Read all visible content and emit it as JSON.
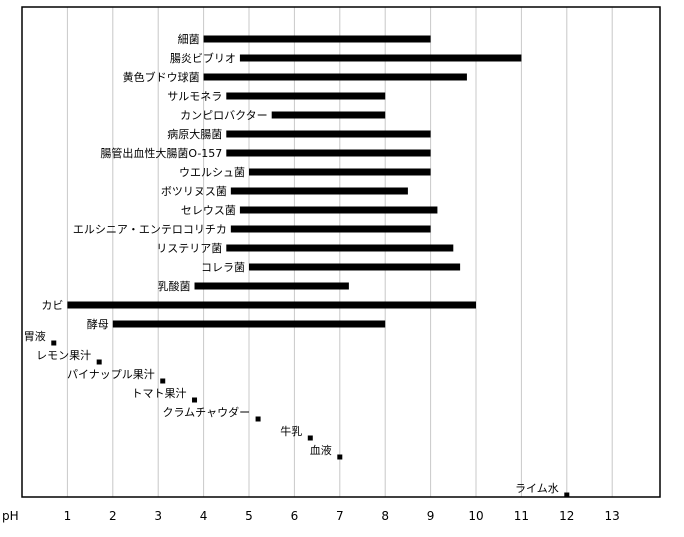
{
  "chart_data": {
    "type": "bar",
    "orientation": "horizontal-range",
    "x_label": "pH",
    "xlim": [
      0,
      14
    ],
    "x_ticks": [
      "1",
      "2",
      "3",
      "4",
      "5",
      "6",
      "7",
      "8",
      "9",
      "10",
      "11",
      "12",
      "13"
    ],
    "grid": true,
    "colors": {
      "mark": "#000000",
      "grid": "#c8c8c8",
      "frame": "#000000"
    },
    "ranges": [
      {
        "name": "細菌",
        "min": 4.0,
        "max": 9.0
      },
      {
        "name": "腸炎ビブリオ",
        "min": 4.8,
        "max": 11.0
      },
      {
        "name": "黄色ブドウ球菌",
        "min": 4.0,
        "max": 9.8
      },
      {
        "name": "サルモネラ",
        "min": 4.5,
        "max": 8.0
      },
      {
        "name": "カンピロバクター",
        "min": 5.5,
        "max": 8.0
      },
      {
        "name": "病原大腸菌",
        "min": 4.5,
        "max": 9.0
      },
      {
        "name": "腸管出血性大腸菌O-157",
        "min": 4.5,
        "max": 9.0
      },
      {
        "name": "ウエルシュ菌",
        "min": 5.0,
        "max": 9.0
      },
      {
        "name": "ボツリヌス菌",
        "min": 4.6,
        "max": 8.5
      },
      {
        "name": "セレウス菌",
        "min": 4.8,
        "max": 9.15
      },
      {
        "name": "エルシニア・エンテロコリチカ",
        "min": 4.6,
        "max": 9.0
      },
      {
        "name": "リステリア菌",
        "min": 4.5,
        "max": 9.5
      },
      {
        "name": "コレラ菌",
        "min": 5.0,
        "max": 9.65
      },
      {
        "name": "乳酸菌",
        "min": 3.8,
        "max": 7.2
      },
      {
        "name": "カビ",
        "min": 1.0,
        "max": 10.0
      },
      {
        "name": "酵母",
        "min": 2.0,
        "max": 8.0
      }
    ],
    "points": [
      {
        "name": "胃液",
        "value": 0.7
      },
      {
        "name": "レモン果汁",
        "value": 1.7
      },
      {
        "name": "パイナップル果汁",
        "value": 3.1
      },
      {
        "name": "トマト果汁",
        "value": 3.8
      },
      {
        "name": "クラムチャウダー",
        "value": 5.2
      },
      {
        "name": "牛乳",
        "value": 6.35
      },
      {
        "name": "血液",
        "value": 7.0
      },
      {
        "name": "ライム水",
        "value": 12.0
      }
    ]
  }
}
